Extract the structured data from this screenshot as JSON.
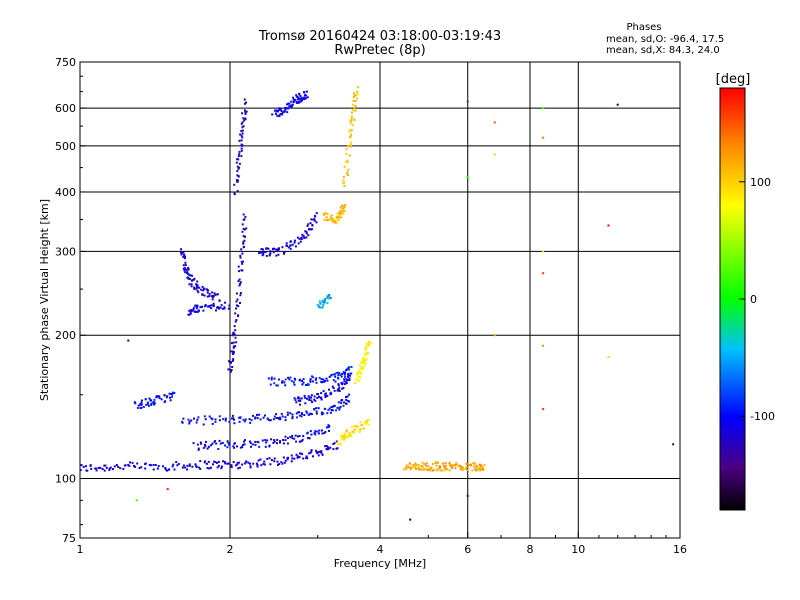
{
  "chart_data": {
    "type": "scatter",
    "title": "Tromsø 20160424 03:18:00-03:19:43",
    "subtitle": "RwPretec (8p)",
    "xlabel": "Frequency [MHz]",
    "ylabel": "Stationary phase Virtual Height [km]",
    "x_scale": "log",
    "y_scale": "log",
    "xlim": [
      1,
      16
    ],
    "ylim": [
      75,
      750
    ],
    "x_ticks": [
      1,
      2,
      4,
      6,
      8,
      10,
      16
    ],
    "y_ticks": [
      75,
      100,
      200,
      300,
      400,
      500,
      600,
      750
    ],
    "x_gridlines": [
      2,
      4,
      6,
      8,
      10
    ],
    "y_gridlines": [
      100,
      200,
      300,
      400,
      500,
      600
    ],
    "grid": true,
    "phases_box": {
      "title": "Phases",
      "line1": "mean, sd,O: -96.4, 17.5",
      "line2": "mean, sd,X: 84.3, 24.0"
    },
    "colorbar": {
      "label": "[deg]",
      "range": [
        -180,
        180
      ],
      "ticks": [
        100,
        0,
        -100
      ],
      "colormap": "rainbow"
    },
    "series": [
      {
        "traces": [
          {
            "x": [
              1.0,
              1.2,
              1.5,
              1.8,
              2.1,
              2.5,
              2.9,
              3.3
            ],
            "y": [
              105,
              106,
              106,
              107,
              107,
              109,
              112,
              118
            ],
            "phase": -110
          },
          {
            "x": [
              1.7,
              2.0,
              2.4,
              2.8,
              3.2
            ],
            "y": [
              117,
              118,
              119,
              122,
              128
            ],
            "phase": -105
          },
          {
            "x": [
              1.6,
              2.0,
              2.4,
              2.8,
              3.2,
              3.5
            ],
            "y": [
              132,
              133,
              134,
              136,
              140,
              148
            ],
            "phase": -100
          },
          {
            "x": [
              1.3,
              1.4,
              1.55
            ],
            "y": [
              143,
              145,
              150
            ],
            "phase": -100
          },
          {
            "x": [
              2.7,
              3.0,
              3.3,
              3.5
            ],
            "y": [
              145,
              148,
              155,
              165
            ],
            "phase": -105
          },
          {
            "x": [
              2.4,
              2.8,
              3.2,
              3.5
            ],
            "y": [
              160,
              160,
              162,
              170
            ],
            "phase": -95
          },
          {
            "x": [
              1.65,
              1.75,
              2.0
            ],
            "y": [
              225,
              228,
              232
            ],
            "phase": -105
          },
          {
            "x": [
              1.6,
              1.65,
              1.75,
              1.9
            ],
            "y": [
              300,
              265,
              248,
              240
            ],
            "phase": -115
          },
          {
            "x": [
              2.0,
              2.05,
              2.1,
              2.15
            ],
            "y": [
              170,
              200,
              280,
              360
            ],
            "phase": -120
          },
          {
            "x": [
              2.05,
              2.1,
              2.15
            ],
            "y": [
              400,
              500,
              620
            ],
            "phase": -120
          },
          {
            "x": [
              2.3,
              2.5,
              2.8,
              3.0
            ],
            "y": [
              300,
              298,
              320,
              360
            ],
            "phase": -110
          },
          {
            "x": [
              2.45,
              2.6,
              2.75,
              2.85
            ],
            "y": [
              580,
              600,
              630,
              640
            ],
            "phase": -105
          },
          {
            "x": [
              3.1,
              3.3,
              3.4
            ],
            "y": [
              355,
              350,
              375
            ],
            "phase": 110
          },
          {
            "x": [
              3.4,
              3.5,
              3.6
            ],
            "y": [
              410,
              550,
              660
            ],
            "phase": 105
          },
          {
            "x": [
              3.3,
              3.5,
              3.8
            ],
            "y": [
              120,
              125,
              132
            ],
            "phase": 95
          },
          {
            "x": [
              3.6,
              3.7,
              3.8
            ],
            "y": [
              160,
              175,
              195
            ],
            "phase": 80
          },
          {
            "x": [
              4.5,
              4.8,
              5.2,
              5.6,
              6.1,
              6.5
            ],
            "y": [
              106,
              106,
              106,
              106,
              106,
              106
            ],
            "phase": 120
          },
          {
            "x": [
              3.0,
              3.2
            ],
            "y": [
              230,
              240
            ],
            "phase": -50
          }
        ]
      }
    ],
    "sparse_points": [
      {
        "x": 8.5,
        "y": 600,
        "phase": 20
      },
      {
        "x": 8.5,
        "y": 520,
        "phase": 140
      },
      {
        "x": 8.5,
        "y": 300,
        "phase": 60
      },
      {
        "x": 8.5,
        "y": 270,
        "phase": 160
      },
      {
        "x": 8.5,
        "y": 190,
        "phase": 130
      },
      {
        "x": 8.5,
        "y": 140,
        "phase": 160
      },
      {
        "x": 6.8,
        "y": 560,
        "phase": 150
      },
      {
        "x": 6.8,
        "y": 480,
        "phase": 100
      },
      {
        "x": 6.8,
        "y": 200,
        "phase": 120
      },
      {
        "x": 6.0,
        "y": 620,
        "phase": -80
      },
      {
        "x": 6.0,
        "y": 430,
        "phase": 0
      },
      {
        "x": 6.0,
        "y": 92,
        "phase": -120
      },
      {
        "x": 12.0,
        "y": 610,
        "phase": -170
      },
      {
        "x": 11.5,
        "y": 340,
        "phase": 180
      },
      {
        "x": 11.5,
        "y": 180,
        "phase": 60
      },
      {
        "x": 15.5,
        "y": 118,
        "phase": -150
      },
      {
        "x": 4.6,
        "y": 82,
        "phase": -170
      },
      {
        "x": 1.3,
        "y": 90,
        "phase": 20
      },
      {
        "x": 1.5,
        "y": 95,
        "phase": 170
      },
      {
        "x": 1.25,
        "y": 195,
        "phase": -160
      }
    ]
  }
}
